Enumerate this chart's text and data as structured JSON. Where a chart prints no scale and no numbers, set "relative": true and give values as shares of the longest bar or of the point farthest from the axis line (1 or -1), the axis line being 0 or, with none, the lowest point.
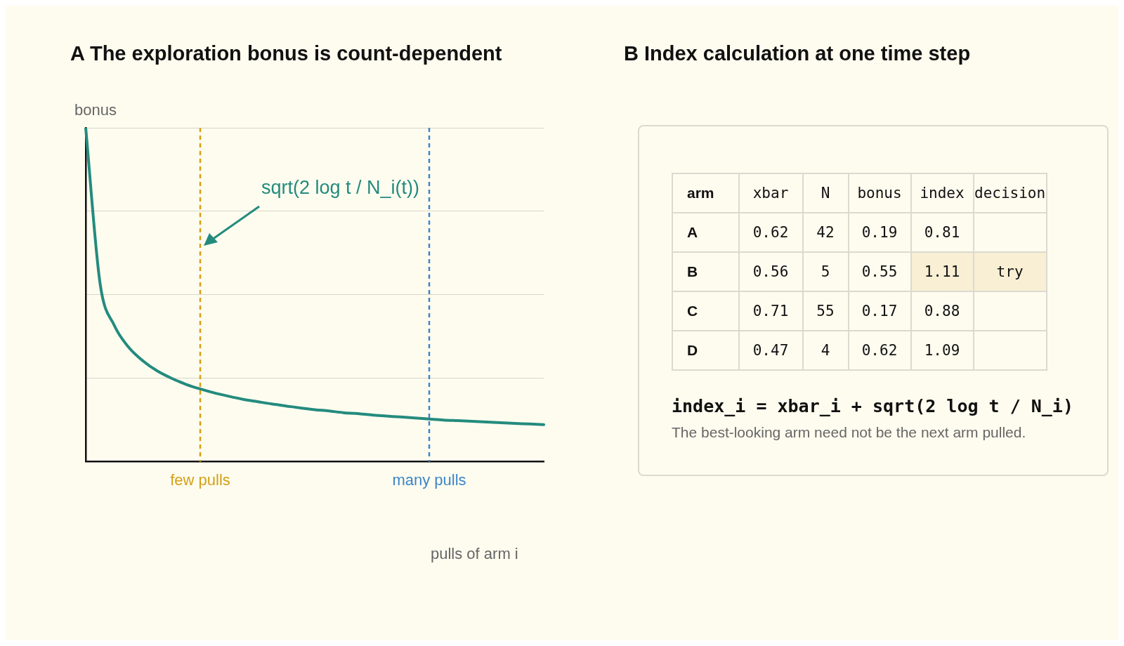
{
  "chart_data": [
    {
      "type": "line",
      "title": "A  The exploration bonus is count-dependent",
      "ylabel": "bonus",
      "xlabel": "pulls of arm i",
      "relative": true,
      "grid": "y",
      "tick_labels": "x",
      "legend": false,
      "marker": "none",
      "line_style": "solid",
      "categories": [
        null,
        null,
        null,
        null,
        null,
        null,
        null,
        null,
        "few pulls",
        null,
        null,
        null,
        null,
        null,
        null,
        null,
        null,
        null,
        null,
        null,
        null,
        null,
        null,
        null,
        "many pulls",
        null,
        null,
        null,
        null,
        null,
        null,
        null,
        null
      ],
      "series": [
        {
          "color": "#238b7e",
          "values": [
            1,
            0.535,
            0.408,
            0.343,
            0.302,
            0.272,
            0.25,
            0.232,
            0.218,
            0.206,
            0.196,
            0.187,
            0.18,
            0.173,
            0.167,
            0.161,
            0.156,
            0.152,
            0.147,
            0.144,
            0.14,
            0.137,
            0.134,
            0.131,
            0.128,
            0.125,
            0.123,
            0.121,
            0.119,
            0.117,
            0.115,
            0.113,
            0.111
          ]
        }
      ],
      "ref_lines": [
        {
          "axis": "x",
          "value": "few pulls",
          "color": "#d4a017",
          "line_style": "dashed"
        },
        {
          "axis": "x",
          "value": "many pulls",
          "color": "#3d85c6",
          "line_style": "dashed"
        }
      ],
      "annotations": [
        "sqrt(2 log t / N_i(t))"
      ]
    },
    {
      "type": "other",
      "title": "B  Index calculation at one time step",
      "categories": [
        "arm",
        "xbar",
        "N",
        "bonus",
        "index",
        "decision"
      ],
      "cell_labels": [
        [
          "A",
          "0.62",
          "42",
          "0.19",
          "0.81",
          null
        ],
        [
          "B",
          "0.56",
          "5",
          "0.55",
          "1.11",
          "try"
        ],
        [
          "C",
          "0.71",
          "55",
          "0.17",
          "0.88",
          null
        ],
        [
          "D",
          "0.47",
          "4",
          "0.62",
          "1.09",
          null
        ]
      ],
      "annotations": [
        "index_i = xbar_i + sqrt(2 log t / N_i)",
        "The best-looking arm need not be the next arm pulled."
      ]
    }
  ]
}
